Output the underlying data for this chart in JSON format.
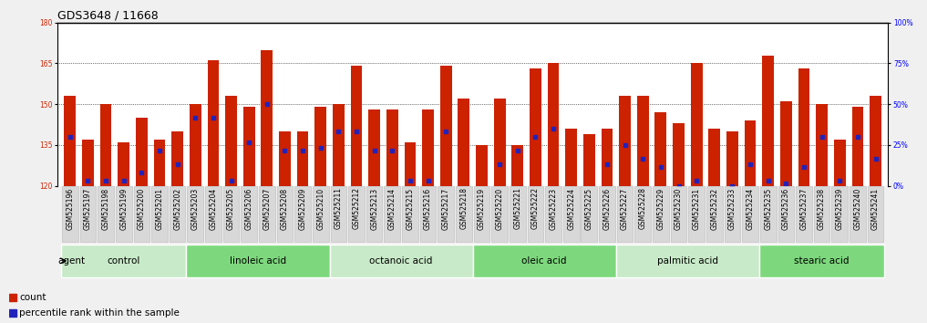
{
  "title": "GDS3648 / 11668",
  "samples": [
    "GSM525196",
    "GSM525197",
    "GSM525198",
    "GSM525199",
    "GSM525200",
    "GSM525201",
    "GSM525202",
    "GSM525203",
    "GSM525204",
    "GSM525205",
    "GSM525206",
    "GSM525207",
    "GSM525208",
    "GSM525209",
    "GSM525210",
    "GSM525211",
    "GSM525212",
    "GSM525213",
    "GSM525214",
    "GSM525215",
    "GSM525216",
    "GSM525217",
    "GSM525218",
    "GSM525219",
    "GSM525220",
    "GSM525221",
    "GSM525222",
    "GSM525223",
    "GSM525224",
    "GSM525225",
    "GSM525226",
    "GSM525227",
    "GSM525228",
    "GSM525229",
    "GSM525230",
    "GSM525231",
    "GSM525232",
    "GSM525233",
    "GSM525234",
    "GSM525235",
    "GSM525236",
    "GSM525237",
    "GSM525238",
    "GSM525239",
    "GSM525240",
    "GSM525241"
  ],
  "counts": [
    153,
    137,
    150,
    136,
    145,
    137,
    140,
    150,
    166,
    153,
    149,
    170,
    140,
    140,
    149,
    150,
    164,
    148,
    148,
    136,
    148,
    164,
    152,
    135,
    152,
    135,
    163,
    165,
    141,
    139,
    141,
    153,
    153,
    147,
    143,
    165,
    141,
    140,
    144,
    168,
    151,
    163,
    150,
    137,
    149,
    153
  ],
  "percentile_ranks": [
    138,
    122,
    122,
    122,
    125,
    133,
    128,
    145,
    145,
    122,
    136,
    150,
    133,
    133,
    134,
    140,
    140,
    133,
    133,
    122,
    122,
    140,
    118,
    118,
    128,
    133,
    138,
    141,
    118,
    116,
    128,
    135,
    130,
    127,
    120,
    122,
    118,
    120,
    128,
    122,
    121,
    127,
    138,
    122,
    138,
    130
  ],
  "groups": [
    {
      "label": "control",
      "start": 0,
      "end": 7,
      "color": "#c8eac8"
    },
    {
      "label": "linoleic acid",
      "start": 7,
      "end": 15,
      "color": "#7dd87d"
    },
    {
      "label": "octanoic acid",
      "start": 15,
      "end": 23,
      "color": "#c8eac8"
    },
    {
      "label": "oleic acid",
      "start": 23,
      "end": 31,
      "color": "#7dd87d"
    },
    {
      "label": "palmitic acid",
      "start": 31,
      "end": 39,
      "color": "#c8eac8"
    },
    {
      "label": "stearic acid",
      "start": 39,
      "end": 46,
      "color": "#7dd87d"
    }
  ],
  "bar_color": "#cc2200",
  "dot_color": "#2222bb",
  "ylim_left": [
    120,
    180
  ],
  "ylim_right": [
    0,
    100
  ],
  "yticks_left": [
    120,
    135,
    150,
    165,
    180
  ],
  "yticks_right": [
    0,
    25,
    50,
    75,
    100
  ],
  "bg_color": "#f0f0f0",
  "plot_bg": "#ffffff",
  "title_fontsize": 9,
  "tick_fontsize": 5.5,
  "group_fontsize": 7.5,
  "legend_fontsize": 7.5,
  "sample_box_color": "#d8d8d8",
  "sample_box_edge": "#bbbbbb"
}
